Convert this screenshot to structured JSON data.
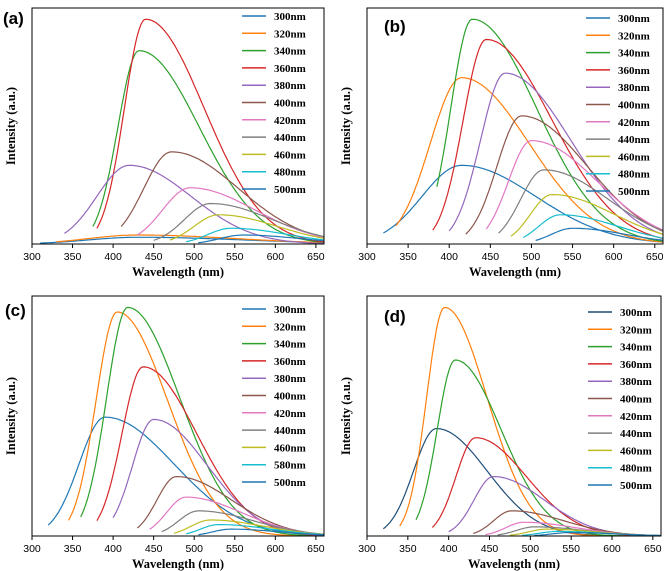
{
  "figure": {
    "wavelength_unit": "nm"
  },
  "chart_data": [
    {
      "type": "line",
      "panel_label": "(a)",
      "xlabel": "Wavelength (nm)",
      "ylabel": "Intensity (a.u.)",
      "xlim": [
        300,
        660
      ],
      "ylim": [
        0,
        1.05
      ],
      "xticks": [
        300,
        350,
        400,
        450,
        500,
        550,
        600,
        650
      ],
      "legend_position": "top-right",
      "series": [
        {
          "name": "300nm",
          "color": "#1f77b4",
          "start": 310,
          "peak": 430,
          "amp": 0.03,
          "wl": 60,
          "wr": 130
        },
        {
          "name": "320nm",
          "color": "#ff7f0e",
          "start": 330,
          "peak": 430,
          "amp": 0.04,
          "wl": 60,
          "wr": 120
        },
        {
          "name": "340nm",
          "color": "#2ca02c",
          "start": 375,
          "peak": 432,
          "amp": 0.86,
          "wl": 26,
          "wr": 74
        },
        {
          "name": "360nm",
          "color": "#d62728",
          "start": 380,
          "peak": 440,
          "amp": 1.0,
          "wl": 26,
          "wr": 72
        },
        {
          "name": "380nm",
          "color": "#9467bd",
          "start": 340,
          "peak": 420,
          "amp": 0.35,
          "wl": 40,
          "wr": 76
        },
        {
          "name": "400nm",
          "color": "#8c564b",
          "start": 410,
          "peak": 472,
          "amp": 0.41,
          "wl": 34,
          "wr": 82
        },
        {
          "name": "420nm",
          "color": "#e377c2",
          "start": 430,
          "peak": 495,
          "amp": 0.25,
          "wl": 34,
          "wr": 80
        },
        {
          "name": "440nm",
          "color": "#7f7f7f",
          "start": 450,
          "peak": 520,
          "amp": 0.18,
          "wl": 32,
          "wr": 76
        },
        {
          "name": "460nm",
          "color": "#bcbd22",
          "start": 470,
          "peak": 530,
          "amp": 0.13,
          "wl": 30,
          "wr": 72
        },
        {
          "name": "480nm",
          "color": "#17becf",
          "start": 490,
          "peak": 545,
          "amp": 0.07,
          "wl": 28,
          "wr": 70
        },
        {
          "name": "500nm",
          "color": "#1f77b4",
          "start": 505,
          "peak": 560,
          "amp": 0.04,
          "wl": 28,
          "wr": 70
        }
      ]
    },
    {
      "type": "line",
      "panel_label": "(b)",
      "xlabel": "Wavelength (nm)",
      "ylabel": "Intensity (a.u.)",
      "xlim": [
        300,
        660
      ],
      "ylim": [
        0,
        1.05
      ],
      "xticks": [
        300,
        350,
        400,
        450,
        500,
        550,
        600,
        650
      ],
      "legend_position": "top-right",
      "series": [
        {
          "name": "300nm",
          "color": "#1f77b4",
          "start": 320,
          "peak": 415,
          "amp": 0.35,
          "wl": 48,
          "wr": 90
        },
        {
          "name": "320nm",
          "color": "#ff7f0e",
          "start": 335,
          "peak": 415,
          "amp": 0.74,
          "wl": 38,
          "wr": 82
        },
        {
          "name": "340nm",
          "color": "#2ca02c",
          "start": 385,
          "peak": 428,
          "amp": 1.0,
          "wl": 26,
          "wr": 78
        },
        {
          "name": "360nm",
          "color": "#d62728",
          "start": 380,
          "peak": 445,
          "amp": 0.91,
          "wl": 28,
          "wr": 80
        },
        {
          "name": "380nm",
          "color": "#9467bd",
          "start": 400,
          "peak": 468,
          "amp": 0.76,
          "wl": 30,
          "wr": 80
        },
        {
          "name": "400nm",
          "color": "#8c564b",
          "start": 420,
          "peak": 488,
          "amp": 0.57,
          "wl": 30,
          "wr": 80
        },
        {
          "name": "420nm",
          "color": "#e377c2",
          "start": 445,
          "peak": 500,
          "amp": 0.46,
          "wl": 28,
          "wr": 80
        },
        {
          "name": "440nm",
          "color": "#7f7f7f",
          "start": 460,
          "peak": 515,
          "amp": 0.33,
          "wl": 28,
          "wr": 78
        },
        {
          "name": "460nm",
          "color": "#bcbd22",
          "start": 475,
          "peak": 525,
          "amp": 0.22,
          "wl": 26,
          "wr": 75
        },
        {
          "name": "480nm",
          "color": "#17becf",
          "start": 490,
          "peak": 535,
          "amp": 0.13,
          "wl": 26,
          "wr": 70
        },
        {
          "name": "500nm",
          "color": "#1f77b4",
          "start": 505,
          "peak": 550,
          "amp": 0.07,
          "wl": 26,
          "wr": 65
        }
      ]
    },
    {
      "type": "line",
      "panel_label": "(c)",
      "xlabel": "Wavelength (nm)",
      "ylabel": "Intensity (a.u.)",
      "xlim": [
        300,
        660
      ],
      "ylim": [
        0,
        1.05
      ],
      "xticks": [
        300,
        350,
        400,
        450,
        500,
        550,
        600,
        650
      ],
      "legend_position": "top-right",
      "series": [
        {
          "name": "300nm",
          "color": "#1f77b4",
          "start": 320,
          "peak": 390,
          "amp": 0.52,
          "wl": 32,
          "wr": 85
        },
        {
          "name": "320nm",
          "color": "#ff7f0e",
          "start": 345,
          "peak": 405,
          "amp": 0.98,
          "wl": 26,
          "wr": 62
        },
        {
          "name": "340nm",
          "color": "#2ca02c",
          "start": 360,
          "peak": 418,
          "amp": 1.0,
          "wl": 26,
          "wr": 64
        },
        {
          "name": "360nm",
          "color": "#d62728",
          "start": 380,
          "peak": 437,
          "amp": 0.74,
          "wl": 26,
          "wr": 66
        },
        {
          "name": "380nm",
          "color": "#9467bd",
          "start": 400,
          "peak": 450,
          "amp": 0.51,
          "wl": 26,
          "wr": 66
        },
        {
          "name": "400nm",
          "color": "#8c564b",
          "start": 430,
          "peak": 478,
          "amp": 0.26,
          "wl": 24,
          "wr": 68
        },
        {
          "name": "420nm",
          "color": "#e377c2",
          "start": 445,
          "peak": 490,
          "amp": 0.17,
          "wl": 24,
          "wr": 68
        },
        {
          "name": "440nm",
          "color": "#7f7f7f",
          "start": 460,
          "peak": 505,
          "amp": 0.11,
          "wl": 24,
          "wr": 68
        },
        {
          "name": "460nm",
          "color": "#bcbd22",
          "start": 475,
          "peak": 520,
          "amp": 0.07,
          "wl": 24,
          "wr": 66
        },
        {
          "name": "580nm",
          "color": "#17becf",
          "start": 490,
          "peak": 530,
          "amp": 0.05,
          "wl": 22,
          "wr": 64
        },
        {
          "name": "500nm",
          "color": "#1f77b4",
          "start": 505,
          "peak": 545,
          "amp": 0.03,
          "wl": 22,
          "wr": 60
        }
      ]
    },
    {
      "type": "line",
      "panel_label": "(d)",
      "xlabel": "Wavelength (nm)",
      "ylabel": "Intensity (a.u.)",
      "xlim": [
        300,
        660
      ],
      "ylim": [
        0,
        1.05
      ],
      "xticks": [
        300,
        350,
        400,
        450,
        500,
        550,
        600,
        650
      ],
      "legend_position": "top-right",
      "series": [
        {
          "name": "300nm",
          "color": "#1f4e79",
          "start": 320,
          "peak": 385,
          "amp": 0.47,
          "wl": 28,
          "wr": 62
        },
        {
          "name": "320nm",
          "color": "#ff7f0e",
          "start": 340,
          "peak": 395,
          "amp": 1.0,
          "wl": 22,
          "wr": 52
        },
        {
          "name": "340nm",
          "color": "#2ca02c",
          "start": 360,
          "peak": 408,
          "amp": 0.77,
          "wl": 22,
          "wr": 56
        },
        {
          "name": "360nm",
          "color": "#d62728",
          "start": 380,
          "peak": 433,
          "amp": 0.43,
          "wl": 24,
          "wr": 62
        },
        {
          "name": "380nm",
          "color": "#9467bd",
          "start": 400,
          "peak": 455,
          "amp": 0.26,
          "wl": 24,
          "wr": 62
        },
        {
          "name": "400nm",
          "color": "#8c564b",
          "start": 430,
          "peak": 477,
          "amp": 0.11,
          "wl": 22,
          "wr": 64
        },
        {
          "name": "420nm",
          "color": "#e377c2",
          "start": 445,
          "peak": 492,
          "amp": 0.06,
          "wl": 22,
          "wr": 64
        },
        {
          "name": "440nm",
          "color": "#7f7f7f",
          "start": 460,
          "peak": 505,
          "amp": 0.04,
          "wl": 22,
          "wr": 62
        },
        {
          "name": "460nm",
          "color": "#bcbd22",
          "start": 475,
          "peak": 520,
          "amp": 0.03,
          "wl": 22,
          "wr": 60
        },
        {
          "name": "480nm",
          "color": "#17becf",
          "start": 490,
          "peak": 533,
          "amp": 0.02,
          "wl": 22,
          "wr": 58
        },
        {
          "name": "500nm",
          "color": "#1f77b4",
          "start": 505,
          "peak": 548,
          "amp": 0.015,
          "wl": 22,
          "wr": 56
        }
      ]
    }
  ]
}
